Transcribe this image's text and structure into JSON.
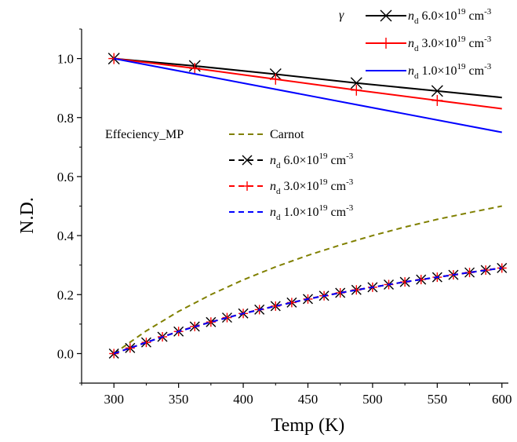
{
  "chart_data": {
    "type": "line",
    "xlabel": "Temp (K)",
    "ylabel": "N.D.",
    "xlim": [
      275,
      605
    ],
    "ylim": [
      -0.1,
      1.1
    ],
    "xticks": [
      300,
      350,
      400,
      450,
      500,
      550,
      600
    ],
    "yticks": [
      0.0,
      0.2,
      0.4,
      0.6,
      0.8,
      1.0
    ],
    "xtick_labels": [
      "300",
      "350",
      "400",
      "450",
      "500",
      "550",
      "600"
    ],
    "ytick_labels": [
      "0.0",
      "0.2",
      "0.4",
      "0.6",
      "0.8",
      "1.0"
    ],
    "grid": false,
    "legends": [
      {
        "title": "γ",
        "placement": "top-right",
        "entries": [
          {
            "prefix": "n",
            "sub": "d",
            "base": " 6.0×10",
            "sup": "19",
            "unit": " cm",
            "unit_sup": "-3",
            "color": "#000000",
            "marker": "x",
            "dashed": false
          },
          {
            "prefix": "n",
            "sub": "d",
            "base": " 3.0×10",
            "sup": "19",
            "unit": " cm",
            "unit_sup": "-3",
            "color": "#ff0000",
            "marker": "+",
            "dashed": false
          },
          {
            "prefix": "n",
            "sub": "d",
            "base": " 1.0×10",
            "sup": "19",
            "unit": " cm",
            "unit_sup": "-3",
            "color": "#0000ff",
            "marker": "none",
            "dashed": false
          }
        ]
      },
      {
        "title": "Effeciency_MP",
        "placement": "center-left",
        "entries": [
          {
            "text": "Carnot",
            "color": "#808000",
            "marker": "none",
            "dashed": true
          },
          {
            "prefix": "n",
            "sub": "d",
            "base": " 6.0×10",
            "sup": "19",
            "unit": " cm",
            "unit_sup": "-3",
            "color": "#000000",
            "marker": "x",
            "dashed": true
          },
          {
            "prefix": "n",
            "sub": "d",
            "base": " 3.0×10",
            "sup": "19",
            "unit": " cm",
            "unit_sup": "-3",
            "color": "#ff0000",
            "marker": "+",
            "dashed": true
          },
          {
            "prefix": "n",
            "sub": "d",
            "base": " 1.0×10",
            "sup": "19",
            "unit": " cm",
            "unit_sup": "-3",
            "color": "#0000ff",
            "marker": "none",
            "dashed": true
          }
        ]
      }
    ],
    "series": [
      {
        "group": "gamma",
        "color": "#000000",
        "dashed": false,
        "marker": "x",
        "x": [
          300,
          362.5,
          425,
          487.5,
          550,
          600
        ],
        "y": [
          1.0,
          0.975,
          0.947,
          0.917,
          0.89,
          0.868
        ],
        "marker_x": [
          300,
          362.5,
          425,
          487.5,
          550
        ]
      },
      {
        "group": "gamma",
        "color": "#ff0000",
        "dashed": false,
        "marker": "+",
        "x": [
          300,
          362.5,
          425,
          487.5,
          550,
          600
        ],
        "y": [
          1.0,
          0.967,
          0.93,
          0.893,
          0.858,
          0.83
        ],
        "marker_x": [
          300,
          362.5,
          425,
          487.5,
          550
        ]
      },
      {
        "group": "gamma",
        "color": "#0000ff",
        "dashed": false,
        "marker": "none",
        "x": [
          300,
          600
        ],
        "y": [
          1.0,
          0.75
        ],
        "marker_x": []
      },
      {
        "group": "efficiency",
        "color": "#808000",
        "dashed": true,
        "marker": "none",
        "x": [
          300,
          325,
          350,
          375,
          400,
          425,
          450,
          475,
          500,
          525,
          550,
          575,
          600
        ],
        "y": [
          0.0,
          0.077,
          0.143,
          0.2,
          0.25,
          0.294,
          0.333,
          0.368,
          0.4,
          0.429,
          0.455,
          0.478,
          0.5
        ],
        "marker_x": []
      },
      {
        "group": "efficiency",
        "color": "#000000",
        "dashed": true,
        "marker": "x",
        "x": [
          300,
          312.5,
          325,
          337.5,
          350,
          362.5,
          375,
          387.5,
          400,
          412.5,
          425,
          437.5,
          450,
          462.5,
          475,
          487.5,
          500,
          512.5,
          525,
          537.5,
          550,
          562.5,
          575,
          587.5,
          600
        ],
        "y": [
          0.0,
          0.019,
          0.038,
          0.057,
          0.075,
          0.092,
          0.107,
          0.122,
          0.136,
          0.149,
          0.161,
          0.173,
          0.185,
          0.196,
          0.206,
          0.216,
          0.225,
          0.234,
          0.243,
          0.251,
          0.259,
          0.267,
          0.275,
          0.283,
          0.29
        ],
        "marker_x": [
          300,
          312.5,
          325,
          337.5,
          350,
          362.5,
          375,
          387.5,
          400,
          412.5,
          425,
          437.5,
          450,
          462.5,
          475,
          487.5,
          500,
          512.5,
          525,
          537.5,
          550,
          562.5,
          575,
          587.5,
          600
        ]
      },
      {
        "group": "efficiency",
        "color": "#ff0000",
        "dashed": true,
        "marker": "+",
        "x": [
          300,
          312.5,
          325,
          337.5,
          350,
          362.5,
          375,
          387.5,
          400,
          412.5,
          425,
          437.5,
          450,
          462.5,
          475,
          487.5,
          500,
          512.5,
          525,
          537.5,
          550,
          562.5,
          575,
          587.5,
          600
        ],
        "y": [
          0.0,
          0.019,
          0.038,
          0.057,
          0.075,
          0.092,
          0.107,
          0.122,
          0.136,
          0.149,
          0.161,
          0.173,
          0.185,
          0.196,
          0.206,
          0.216,
          0.225,
          0.234,
          0.243,
          0.251,
          0.259,
          0.267,
          0.275,
          0.283,
          0.29
        ],
        "marker_x": [
          300,
          312.5,
          325,
          337.5,
          350,
          362.5,
          375,
          387.5,
          400,
          412.5,
          425,
          437.5,
          450,
          462.5,
          475,
          487.5,
          500,
          512.5,
          525,
          537.5,
          550,
          562.5,
          575,
          587.5,
          600
        ]
      },
      {
        "group": "efficiency",
        "color": "#0000ff",
        "dashed": true,
        "marker": "none",
        "x": [
          300,
          325,
          350,
          375,
          400,
          425,
          450,
          475,
          500,
          525,
          550,
          575,
          600
        ],
        "y": [
          0.0,
          0.038,
          0.075,
          0.107,
          0.136,
          0.161,
          0.185,
          0.206,
          0.225,
          0.243,
          0.259,
          0.275,
          0.29
        ],
        "marker_x": []
      }
    ]
  }
}
